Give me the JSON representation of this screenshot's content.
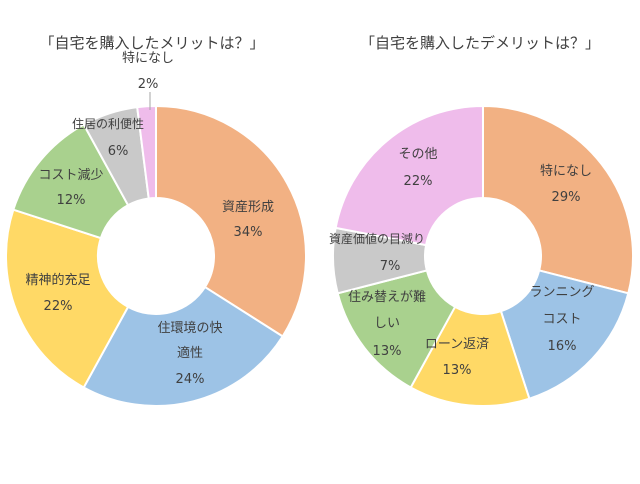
{
  "chart_data": [
    {
      "type": "pie",
      "title": "「自宅を購入したメリットは？」",
      "slices": [
        {
          "label": "資産形成",
          "value": 34,
          "display": "34%",
          "color": "#F2B183"
        },
        {
          "label": "住環境の快適性",
          "value": 24,
          "display": "24%",
          "color": "#9DC3E6"
        },
        {
          "label": "精神的充足",
          "value": 22,
          "display": "22%",
          "color": "#FFD966"
        },
        {
          "label": "コスト減少",
          "value": 12,
          "display": "12%",
          "color": "#A9D18E"
        },
        {
          "label": "住居の利便性",
          "value": 6,
          "display": "6%",
          "color": "#C9C9C9"
        },
        {
          "label": "特になし",
          "value": 2,
          "display": "2%",
          "color": "#EFBCEB"
        }
      ]
    },
    {
      "type": "pie",
      "title": "「自宅を購入したデメリットは？」",
      "slices": [
        {
          "label": "特になし",
          "value": 29,
          "display": "29%",
          "color": "#F2B183"
        },
        {
          "label": "ランニングコスト",
          "value": 16,
          "display": "16%",
          "color": "#9DC3E6"
        },
        {
          "label": "ローン返済",
          "value": 13,
          "display": "13%",
          "color": "#FFD966"
        },
        {
          "label": "住み替えが難しい",
          "value": 13,
          "display": "13%",
          "color": "#A9D18E"
        },
        {
          "label": "資産価値の目減り",
          "value": 7,
          "display": "7%",
          "color": "#C9C9C9"
        },
        {
          "label": "その他",
          "value": 22,
          "display": "22%",
          "color": "#EFBCEB"
        }
      ]
    }
  ]
}
